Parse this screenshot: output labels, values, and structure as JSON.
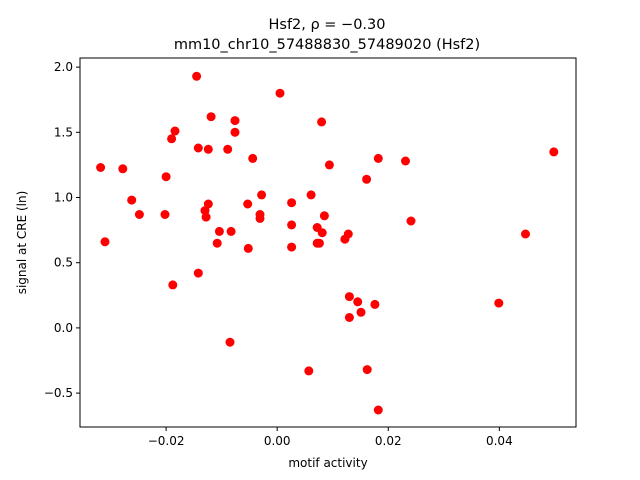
{
  "chart_data": {
    "type": "scatter",
    "title_line1": "Hsf2, ρ = −0.30",
    "title_line2": "mm10_chr10_57488830_57489020 (Hsf2)",
    "xlabel": "motif activity",
    "ylabel": "signal at CRE (ln)",
    "xlim": [
      -0.0355,
      0.0538
    ],
    "ylim": [
      -0.76,
      2.07
    ],
    "x_ticks": [
      -0.02,
      0.0,
      0.02,
      0.04
    ],
    "x_tick_labels": [
      "−0.02",
      "0.00",
      "0.02",
      "0.04"
    ],
    "y_ticks": [
      -0.5,
      0.0,
      0.5,
      1.0,
      1.5,
      2.0
    ],
    "y_tick_labels": [
      "−0.5",
      "0.0",
      "0.5",
      "1.0",
      "1.5",
      "2.0"
    ],
    "grid": false,
    "marker_color": "#ff0000",
    "points": [
      {
        "x": -0.0318,
        "y": 1.23
      },
      {
        "x": -0.031,
        "y": 0.66
      },
      {
        "x": -0.0278,
        "y": 1.22
      },
      {
        "x": -0.0262,
        "y": 0.98
      },
      {
        "x": -0.0248,
        "y": 0.87
      },
      {
        "x": -0.0202,
        "y": 0.87
      },
      {
        "x": -0.02,
        "y": 1.16
      },
      {
        "x": -0.019,
        "y": 1.45
      },
      {
        "x": -0.0184,
        "y": 1.51
      },
      {
        "x": -0.0188,
        "y": 0.33
      },
      {
        "x": -0.0145,
        "y": 1.93
      },
      {
        "x": -0.0142,
        "y": 1.38
      },
      {
        "x": -0.0142,
        "y": 0.42
      },
      {
        "x": -0.013,
        "y": 0.9
      },
      {
        "x": -0.0128,
        "y": 0.85
      },
      {
        "x": -0.0124,
        "y": 1.37
      },
      {
        "x": -0.0124,
        "y": 0.95
      },
      {
        "x": -0.0119,
        "y": 1.62
      },
      {
        "x": -0.0108,
        "y": 0.65
      },
      {
        "x": -0.0104,
        "y": 0.74
      },
      {
        "x": -0.0089,
        "y": 1.37
      },
      {
        "x": -0.0083,
        "y": 0.74
      },
      {
        "x": -0.0085,
        "y": -0.11
      },
      {
        "x": -0.0076,
        "y": 1.59
      },
      {
        "x": -0.0076,
        "y": 1.5
      },
      {
        "x": -0.0053,
        "y": 0.95
      },
      {
        "x": -0.0052,
        "y": 0.61
      },
      {
        "x": -0.0044,
        "y": 1.3
      },
      {
        "x": -0.0031,
        "y": 0.87
      },
      {
        "x": -0.0031,
        "y": 0.84
      },
      {
        "x": -0.0028,
        "y": 1.02
      },
      {
        "x": 0.0005,
        "y": 1.8
      },
      {
        "x": 0.0026,
        "y": 0.96
      },
      {
        "x": 0.0026,
        "y": 0.79
      },
      {
        "x": 0.0026,
        "y": 0.62
      },
      {
        "x": 0.0057,
        "y": -0.33
      },
      {
        "x": 0.0061,
        "y": 1.02
      },
      {
        "x": 0.0072,
        "y": 0.77
      },
      {
        "x": 0.0072,
        "y": 0.65
      },
      {
        "x": 0.0076,
        "y": 0.65
      },
      {
        "x": 0.008,
        "y": 1.58
      },
      {
        "x": 0.0081,
        "y": 0.73
      },
      {
        "x": 0.0085,
        "y": 0.86
      },
      {
        "x": 0.0094,
        "y": 1.25
      },
      {
        "x": 0.0122,
        "y": 0.68
      },
      {
        "x": 0.0128,
        "y": 0.72
      },
      {
        "x": 0.013,
        "y": 0.24
      },
      {
        "x": 0.013,
        "y": 0.08
      },
      {
        "x": 0.0145,
        "y": 0.2
      },
      {
        "x": 0.0151,
        "y": 0.12
      },
      {
        "x": 0.0161,
        "y": 1.14
      },
      {
        "x": 0.0162,
        "y": -0.32
      },
      {
        "x": 0.0176,
        "y": 0.18
      },
      {
        "x": 0.0182,
        "y": 1.3
      },
      {
        "x": 0.0182,
        "y": -0.63
      },
      {
        "x": 0.0231,
        "y": 1.28
      },
      {
        "x": 0.0241,
        "y": 0.82
      },
      {
        "x": 0.0399,
        "y": 0.19
      },
      {
        "x": 0.0447,
        "y": 0.72
      },
      {
        "x": 0.0498,
        "y": 1.35
      }
    ]
  }
}
